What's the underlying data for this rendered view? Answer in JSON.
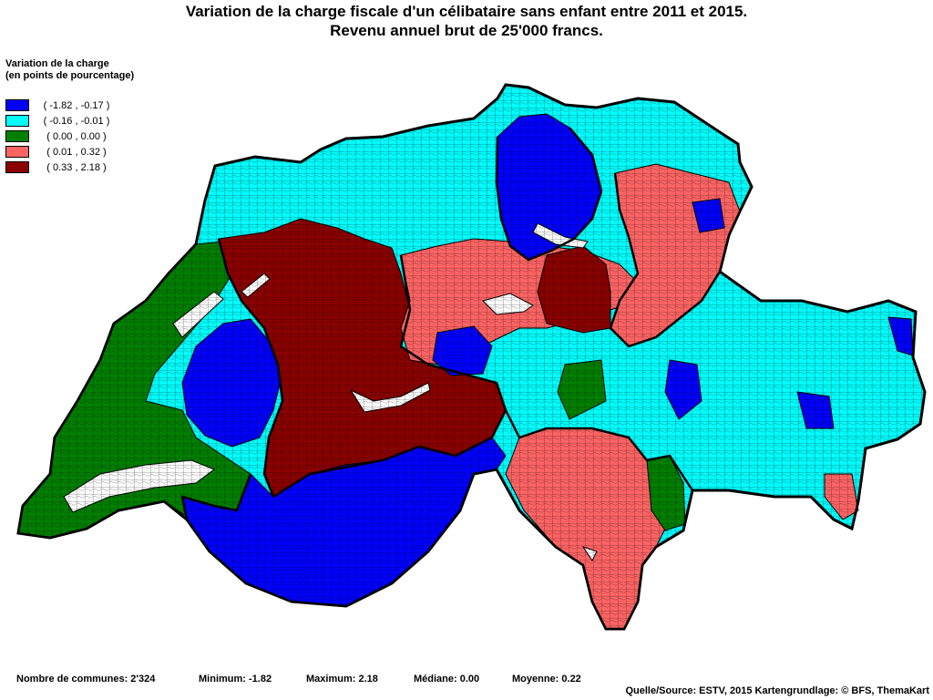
{
  "title": {
    "line1": "Variation de la charge fiscale d'un célibataire sans enfant entre 2011 et 2015.",
    "line2": "Revenu annuel brut de 25'000 francs."
  },
  "legend": {
    "title_line1": "Variation de la charge",
    "title_line2": "(en points de pourcentage)",
    "items": [
      {
        "label": "( -1.82 , -0.17 )",
        "color": "#0000ff"
      },
      {
        "label": "( -0.16 , -0.01 )",
        "color": "#00ffff"
      },
      {
        "label": "( 0.00 , 0.00 )",
        "color": "#008000"
      },
      {
        "label": "( 0.01 , 0.32 )",
        "color": "#ff6464"
      },
      {
        "label": "( 0.33 , 2.18 )",
        "color": "#8b0000"
      }
    ]
  },
  "stats": {
    "communes": "Nombre de communes: 2'324",
    "minimum": "Minimum: -1.82",
    "maximum": "Maximum: 2.18",
    "median": "Médiane: 0.00",
    "mean": "Moyenne: 0.22"
  },
  "source": "Quelle/Source: ESTV, 2015 Kartengrundlage: © BFS, ThemaKart"
}
